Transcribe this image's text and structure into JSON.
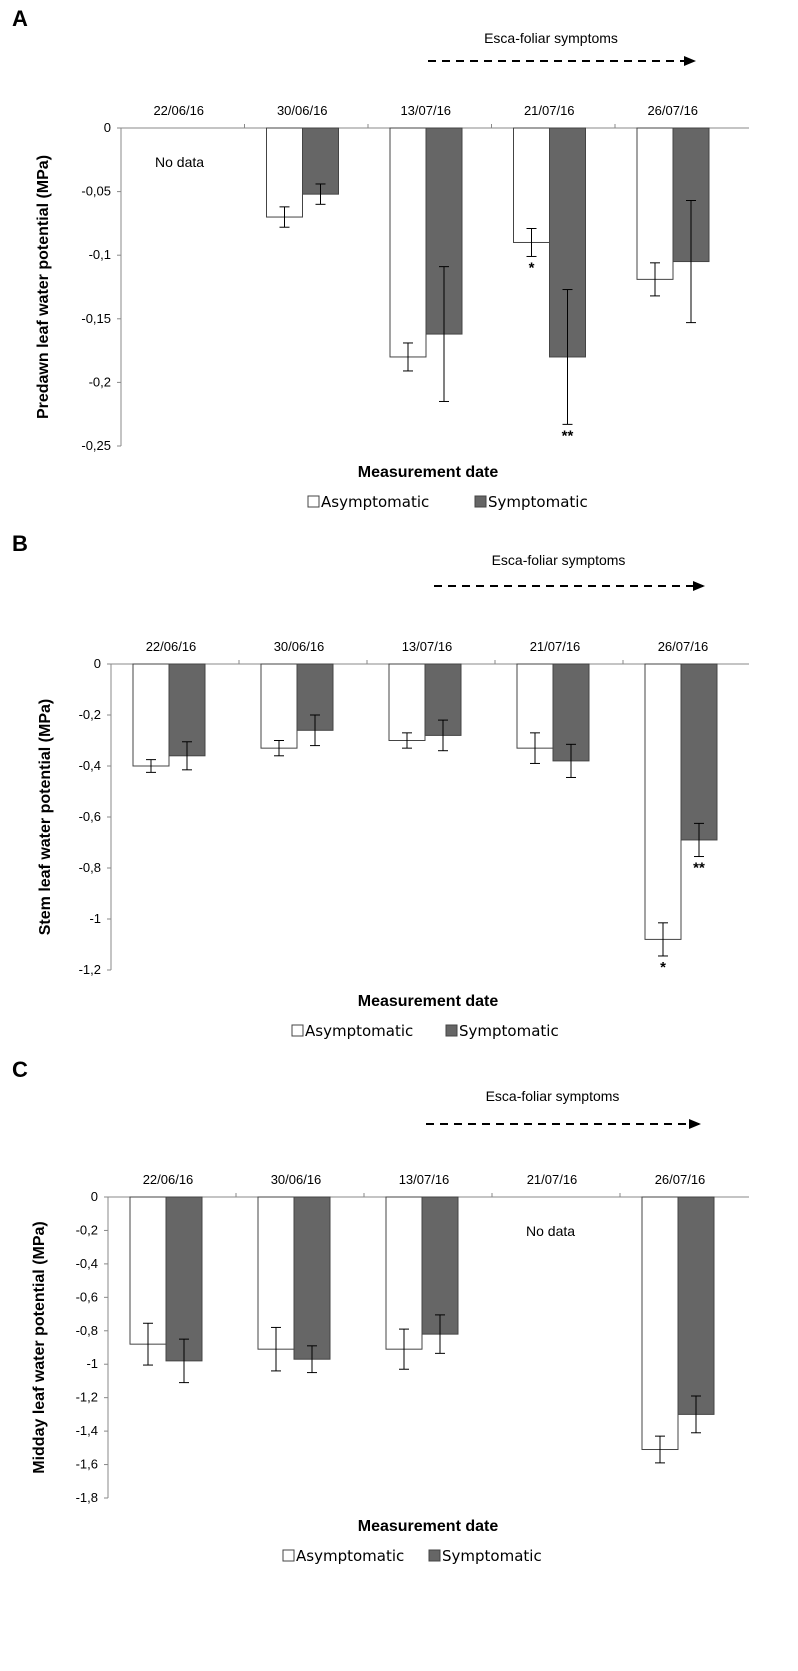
{
  "annotation_text": "Esca-foliar symptoms",
  "no_data_label": "No data",
  "chart_data": [
    {
      "panel": "A",
      "type": "bar",
      "categories": [
        "22/06/16",
        "30/06/16",
        "13/07/16",
        "21/07/16",
        "26/07/16"
      ],
      "ylabel": "Predawn leaf water potential (MPa)",
      "xlabel": "Measurement date",
      "ylim": [
        -0.25,
        0
      ],
      "yticks": [
        0,
        -0.05,
        -0.1,
        -0.15,
        -0.2,
        -0.25
      ],
      "ytick_labels": [
        "0",
        "-0,05",
        "-0,1",
        "-0,15",
        "-0,2",
        "-0,25"
      ],
      "legend": [
        "Asymptomatic",
        "Symptomatic"
      ],
      "series": [
        {
          "name": "Asymptomatic",
          "color": "#ffffff",
          "values": [
            null,
            -0.07,
            -0.18,
            -0.09,
            -0.119
          ],
          "errors": [
            null,
            0.008,
            0.011,
            0.011,
            0.013
          ],
          "marks": [
            "",
            "",
            "",
            "*",
            ""
          ]
        },
        {
          "name": "Symptomatic",
          "color": "#666666",
          "values": [
            null,
            -0.052,
            -0.162,
            -0.18,
            -0.105
          ],
          "errors": [
            null,
            0.008,
            0.053,
            0.053,
            0.048
          ],
          "marks": [
            "",
            "",
            "",
            "**",
            ""
          ]
        }
      ],
      "no_data_index": 0,
      "arrow_from_index": 2
    },
    {
      "panel": "B",
      "type": "bar",
      "categories": [
        "22/06/16",
        "30/06/16",
        "13/07/16",
        "21/07/16",
        "26/07/16"
      ],
      "ylabel": "Stem leaf water potential (MPa)",
      "xlabel": "Measurement date",
      "ylim": [
        -1.2,
        0
      ],
      "yticks": [
        0,
        -0.2,
        -0.4,
        -0.6,
        -0.8,
        -1,
        -1.2
      ],
      "ytick_labels": [
        "0",
        "-0,2",
        "-0,4",
        "-0,6",
        "-0,8",
        "-1",
        "-1,2"
      ],
      "legend": [
        "Asymptomatic",
        "Symptomatic"
      ],
      "series": [
        {
          "name": "Asymptomatic",
          "color": "#ffffff",
          "values": [
            -0.4,
            -0.33,
            -0.3,
            -0.33,
            -1.08
          ],
          "errors": [
            0.025,
            0.03,
            0.03,
            0.06,
            0.065
          ],
          "marks": [
            "",
            "",
            "",
            "",
            "*"
          ]
        },
        {
          "name": "Symptomatic",
          "color": "#666666",
          "values": [
            -0.36,
            -0.26,
            -0.28,
            -0.38,
            -0.69
          ],
          "errors": [
            0.055,
            0.06,
            0.06,
            0.065,
            0.065
          ],
          "marks": [
            "",
            "",
            "",
            "",
            "**"
          ]
        }
      ],
      "no_data_index": null,
      "arrow_from_index": 2
    },
    {
      "panel": "C",
      "type": "bar",
      "categories": [
        "22/06/16",
        "30/06/16",
        "13/07/16",
        "21/07/16",
        "26/07/16"
      ],
      "ylabel": "Midday leaf water potential (MPa)",
      "xlabel": "Measurement date",
      "ylim": [
        -1.8,
        0
      ],
      "yticks": [
        0,
        -0.2,
        -0.4,
        -0.6,
        -0.8,
        -1,
        -1.2,
        -1.4,
        -1.6,
        -1.8
      ],
      "ytick_labels": [
        "0",
        "-0,2",
        "-0,4",
        "-0,6",
        "-0,8",
        "-1",
        "-1,2",
        "-1,4",
        "-1,6",
        "-1,8"
      ],
      "legend": [
        "Asymptomatic",
        "Symptomatic"
      ],
      "series": [
        {
          "name": "Asymptomatic",
          "color": "#ffffff",
          "values": [
            -0.88,
            -0.91,
            -0.91,
            null,
            -1.51
          ],
          "errors": [
            0.125,
            0.13,
            0.12,
            null,
            0.08
          ],
          "marks": [
            "",
            "",
            "",
            "",
            ""
          ]
        },
        {
          "name": "Symptomatic",
          "color": "#666666",
          "values": [
            -0.98,
            -0.97,
            -0.82,
            null,
            -1.3
          ],
          "errors": [
            0.13,
            0.08,
            0.115,
            null,
            0.11
          ],
          "marks": [
            "",
            "",
            "",
            "",
            ""
          ]
        }
      ],
      "no_data_index": 3,
      "arrow_from_index": 2
    }
  ]
}
